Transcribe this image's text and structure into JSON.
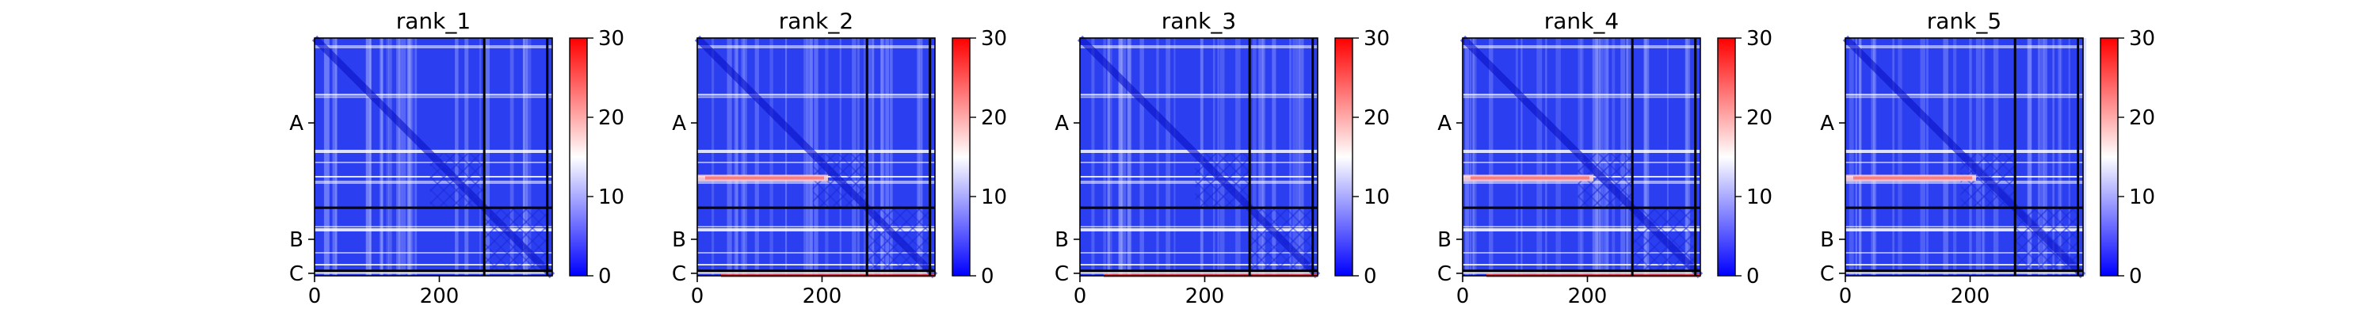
{
  "chart_data": [
    {
      "type": "heatmap",
      "title": "rank_1",
      "x_ticks": [
        0,
        200
      ],
      "xlim": [
        0,
        381
      ],
      "y_ticks": [
        "A",
        "B",
        "C"
      ],
      "chain_lengths": [
        272,
        101,
        8
      ],
      "colorbar": {
        "range": [
          0,
          30
        ],
        "ticks": [
          0,
          10,
          20,
          30
        ],
        "colormap": [
          "#0000ff",
          "#ffffff",
          "#ff0000"
        ]
      },
      "red_stripe": false,
      "red_bottom": false
    },
    {
      "type": "heatmap",
      "title": "rank_2",
      "x_ticks": [
        0,
        200
      ],
      "xlim": [
        0,
        381
      ],
      "y_ticks": [
        "A",
        "B",
        "C"
      ],
      "chain_lengths": [
        272,
        101,
        8
      ],
      "colorbar": {
        "range": [
          0,
          30
        ],
        "ticks": [
          0,
          10,
          20,
          30
        ],
        "colormap": [
          "#0000ff",
          "#ffffff",
          "#ff0000"
        ]
      },
      "red_stripe": true,
      "red_bottom": true
    },
    {
      "type": "heatmap",
      "title": "rank_3",
      "x_ticks": [
        0,
        200
      ],
      "xlim": [
        0,
        381
      ],
      "y_ticks": [
        "A",
        "B",
        "C"
      ],
      "chain_lengths": [
        272,
        101,
        8
      ],
      "colorbar": {
        "range": [
          0,
          30
        ],
        "ticks": [
          0,
          10,
          20,
          30
        ],
        "colormap": [
          "#0000ff",
          "#ffffff",
          "#ff0000"
        ]
      },
      "red_stripe": false,
      "red_bottom": true
    },
    {
      "type": "heatmap",
      "title": "rank_4",
      "x_ticks": [
        0,
        200
      ],
      "xlim": [
        0,
        381
      ],
      "y_ticks": [
        "A",
        "B",
        "C"
      ],
      "chain_lengths": [
        272,
        101,
        8
      ],
      "colorbar": {
        "range": [
          0,
          30
        ],
        "ticks": [
          0,
          10,
          20,
          30
        ],
        "colormap": [
          "#0000ff",
          "#ffffff",
          "#ff0000"
        ]
      },
      "red_stripe": true,
      "red_bottom": true
    },
    {
      "type": "heatmap",
      "title": "rank_5",
      "x_ticks": [
        0,
        200
      ],
      "xlim": [
        0,
        381
      ],
      "y_ticks": [
        "A",
        "B",
        "C"
      ],
      "chain_lengths": [
        272,
        101,
        8
      ],
      "colorbar": {
        "range": [
          0,
          30
        ],
        "ticks": [
          0,
          10,
          20,
          30
        ],
        "colormap": [
          "#0000ff",
          "#ffffff",
          "#ff0000"
        ]
      },
      "red_stripe": true,
      "red_bottom": false
    }
  ]
}
